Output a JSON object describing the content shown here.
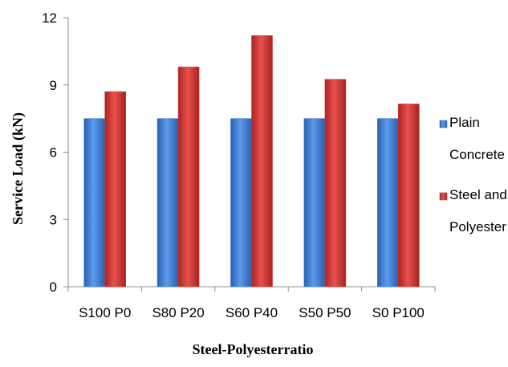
{
  "chart_data": {
    "type": "bar",
    "categories": [
      "S100 P0",
      "S80 P20",
      "S60 P40",
      "S50 P50",
      "S0 P100"
    ],
    "series": [
      {
        "name": "Plain Concrete",
        "values": [
          7.5,
          7.5,
          7.5,
          7.5,
          7.5
        ],
        "color": "#3F7DD6"
      },
      {
        "name": "Steel and Polyester",
        "values": [
          8.7,
          9.8,
          11.2,
          9.25,
          8.15
        ],
        "color": "#D63A36"
      }
    ],
    "title": "",
    "xlabel": "Steel-Polyesterratio",
    "ylabel": "Service Load (kN)",
    "ylim": [
      0,
      12
    ],
    "yticks": [
      "0",
      "3",
      "6",
      "9",
      "12"
    ],
    "grid": false,
    "legend_position": "right",
    "legend": [
      {
        "lines": [
          "Plain",
          "Concrete"
        ]
      },
      {
        "lines": [
          "Steel and",
          "Polyester"
        ]
      }
    ]
  }
}
